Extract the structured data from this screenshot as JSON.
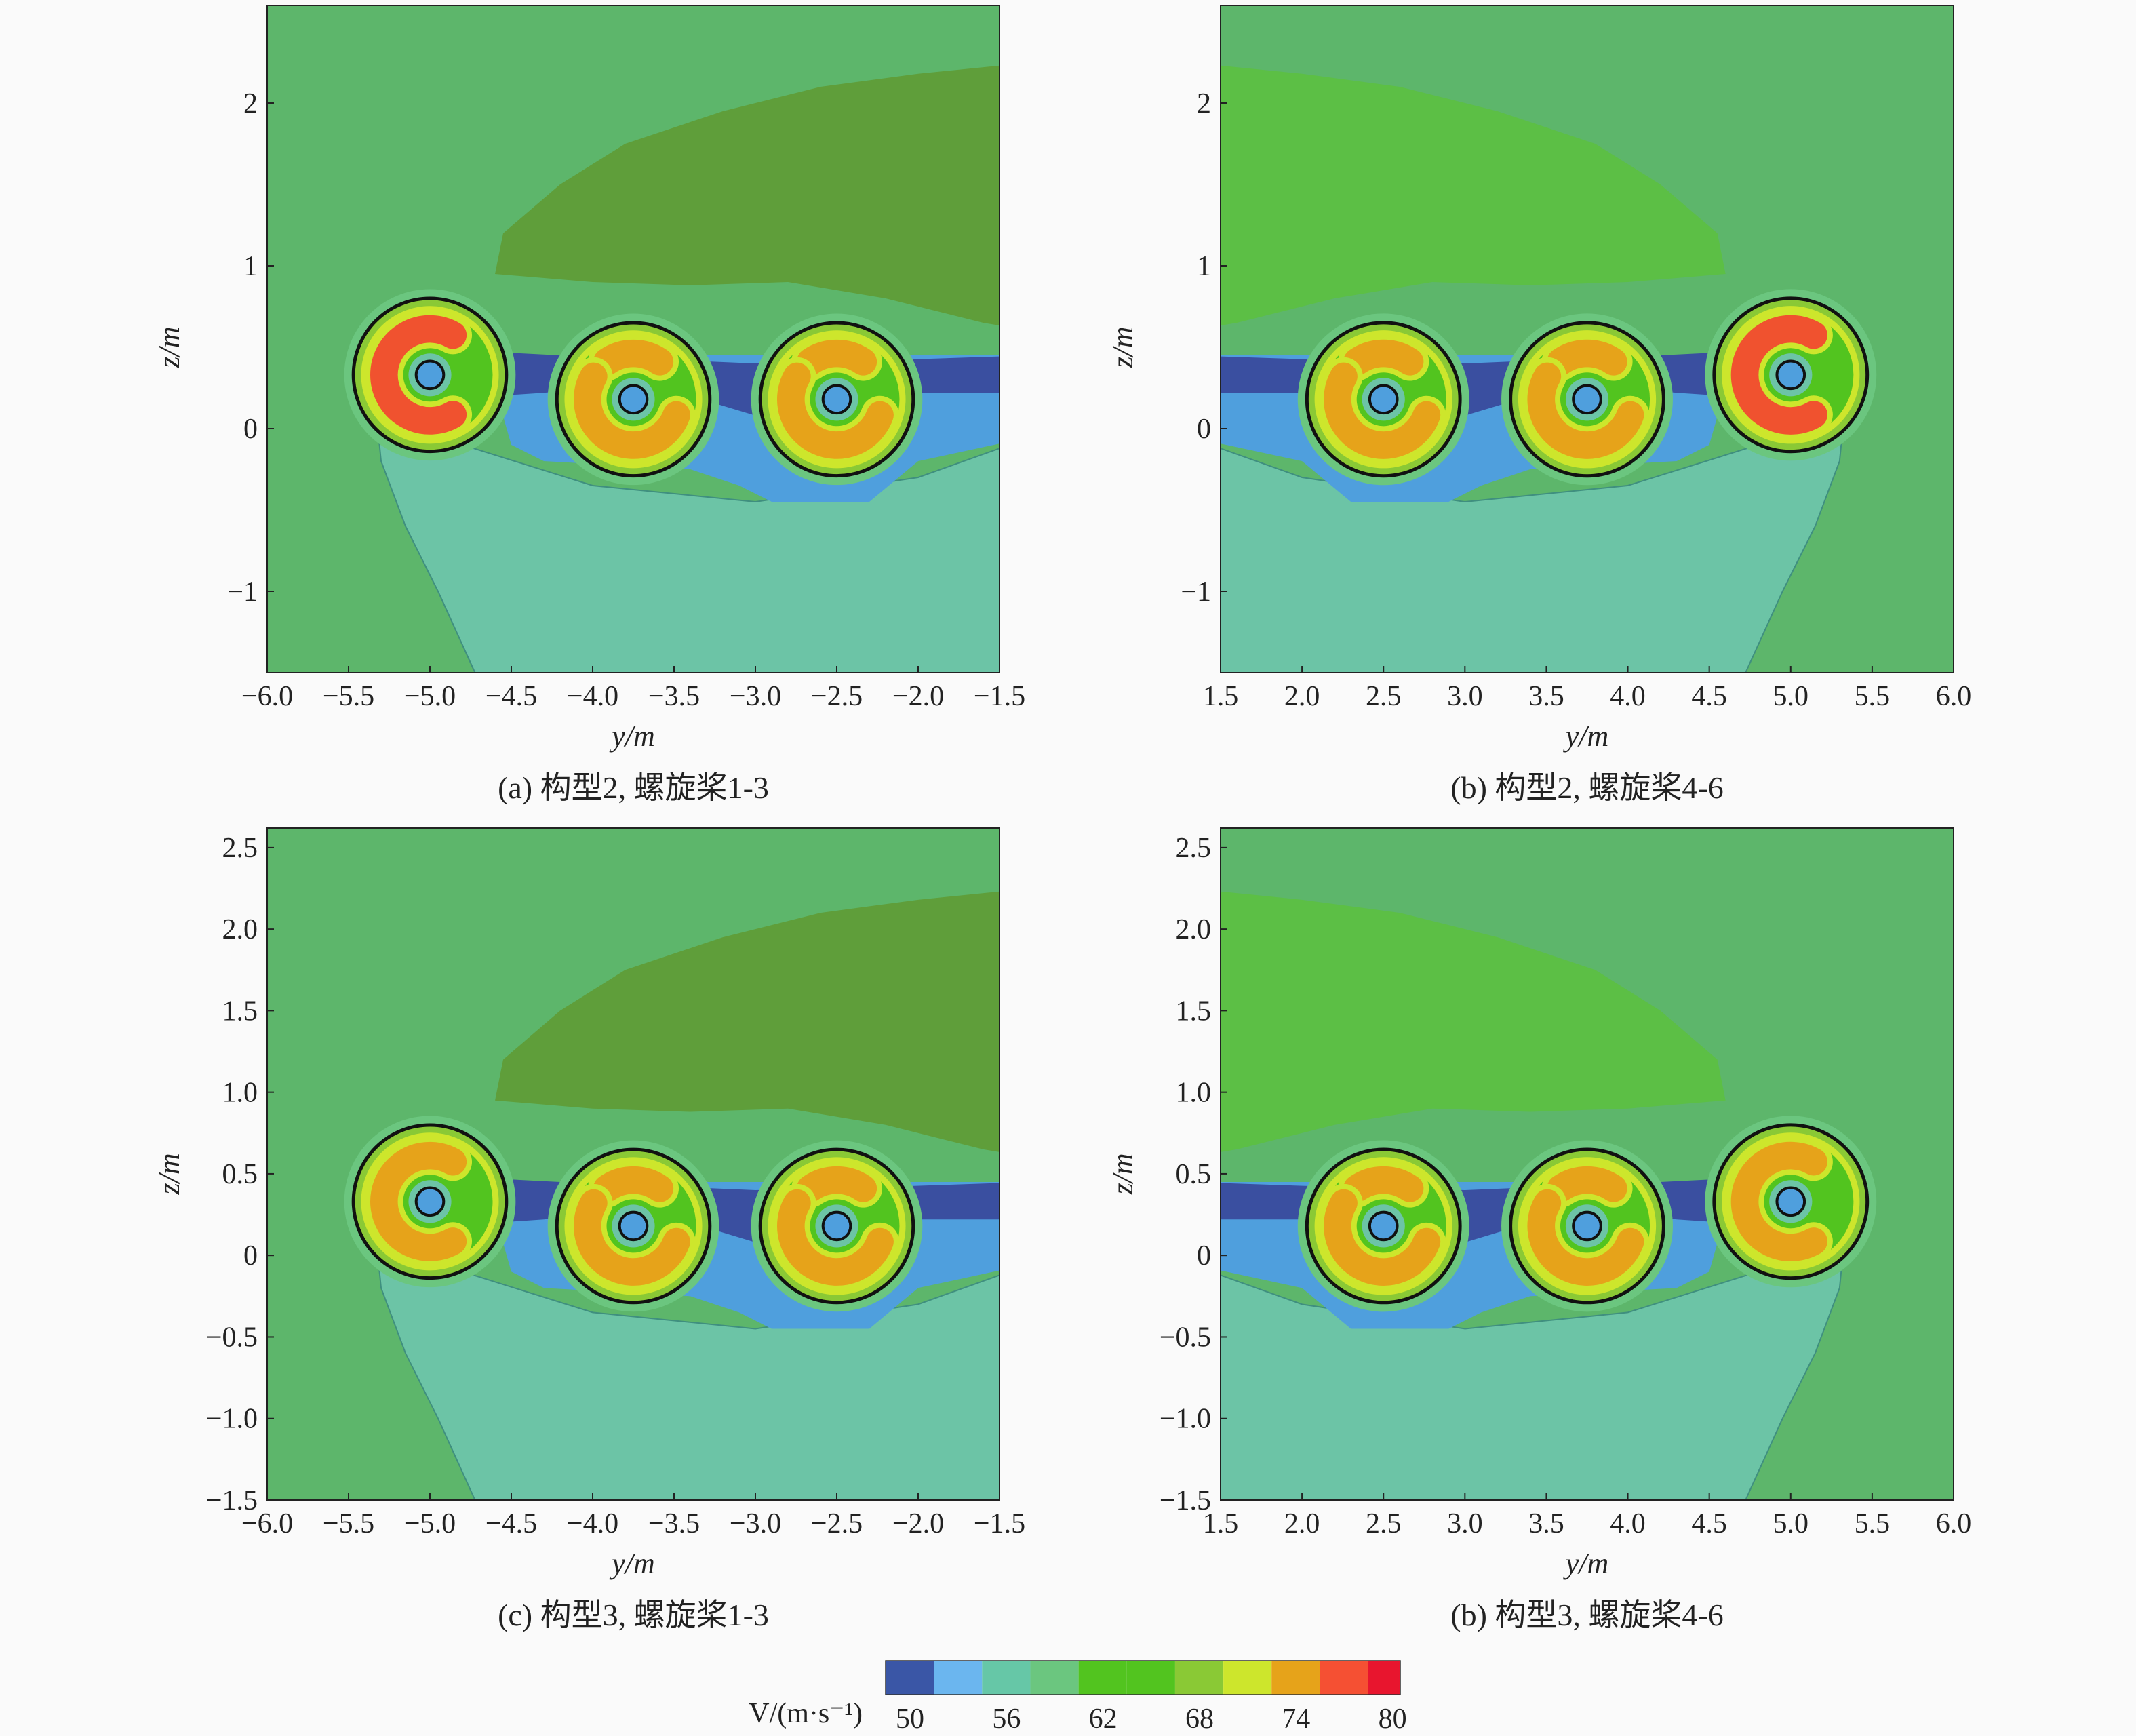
{
  "chart_data": {
    "type": "heatmap",
    "subtype": "filled-contour",
    "colorbar": {
      "label": "V/(m·s⁻¹)",
      "tick_labels": [
        "50",
        "56",
        "62",
        "68",
        "74",
        "80"
      ],
      "levels": [
        50,
        53,
        56,
        59,
        62,
        65,
        68,
        71,
        74,
        77,
        80
      ],
      "colors": [
        "#3a56a6",
        "#6bb6ef",
        "#66c7a7",
        "#6bc67f",
        "#52c41f",
        "#52c41f",
        "#8ac935",
        "#cde62c",
        "#e6a31a",
        "#f55033",
        "#e8152e"
      ]
    },
    "panels": [
      {
        "id": "a",
        "caption": "(a) 构型2, 螺旋桨1-3",
        "xlabel": "y/m",
        "ylabel": "z/m",
        "xlim": [
          -6.0,
          -1.5
        ],
        "ylim": [
          -1.5,
          2.6
        ],
        "xticks": [
          -6.0,
          -5.5,
          -5.0,
          -4.5,
          -4.0,
          -3.5,
          -3.0,
          -2.5,
          -2.0,
          -1.5
        ],
        "xtick_labels": [
          "−6.0",
          "−5.5",
          "−5.0",
          "−4.5",
          "−4.0",
          "−3.5",
          "−3.0",
          "−2.5",
          "−2.0",
          "−1.5"
        ],
        "yticks": [
          -1,
          0,
          1,
          2
        ],
        "ytick_labels": [
          "−1",
          "0",
          "1",
          "2"
        ],
        "side": "left",
        "wake_color": "#5f9e3a",
        "propellers": [
          {
            "y": -5.0,
            "z": 0.33,
            "peak": 80,
            "arcs": [
              [
                60,
                300
              ]
            ]
          },
          {
            "y": -3.75,
            "z": 0.18,
            "peak": 74,
            "arcs": [
              [
                55,
                125
              ],
              [
                150,
                340
              ]
            ]
          },
          {
            "y": -2.5,
            "z": 0.18,
            "peak": 74,
            "arcs": [
              [
                55,
                125
              ],
              [
                150,
                340
              ]
            ]
          }
        ]
      },
      {
        "id": "b",
        "caption": "(b) 构型2, 螺旋桨4-6",
        "xlabel": "y/m",
        "ylabel": "z/m",
        "xlim": [
          1.5,
          6.0
        ],
        "ylim": [
          -1.5,
          2.6
        ],
        "xticks": [
          1.5,
          2.0,
          2.5,
          3.0,
          3.5,
          4.0,
          4.5,
          5.0,
          5.5,
          6.0
        ],
        "xtick_labels": [
          "1.5",
          "2.0",
          "2.5",
          "3.0",
          "3.5",
          "4.0",
          "4.5",
          "5.0",
          "5.5",
          "6.0"
        ],
        "yticks": [
          -1,
          0,
          1,
          2
        ],
        "ytick_labels": [
          "−1",
          "0",
          "1",
          "2"
        ],
        "side": "right",
        "wake_color": "#5cbf45",
        "propellers": [
          {
            "y": 2.5,
            "z": 0.18,
            "peak": 74,
            "arcs": [
              [
                55,
                125
              ],
              [
                200,
                390
              ]
            ]
          },
          {
            "y": 3.75,
            "z": 0.18,
            "peak": 74,
            "arcs": [
              [
                55,
                125
              ],
              [
                200,
                390
              ]
            ]
          },
          {
            "y": 5.0,
            "z": 0.33,
            "peak": 80,
            "arcs": [
              [
                -120,
                120
              ]
            ]
          }
        ]
      },
      {
        "id": "c",
        "caption": "(c) 构型3, 螺旋桨1-3",
        "xlabel": "y/m",
        "ylabel": "z/m",
        "xlim": [
          -6.0,
          -1.5
        ],
        "ylim": [
          -1.5,
          2.62
        ],
        "xticks": [
          -6.0,
          -5.5,
          -5.0,
          -4.5,
          -4.0,
          -3.5,
          -3.0,
          -2.5,
          -2.0,
          -1.5
        ],
        "xtick_labels": [
          "−6.0",
          "−5.5",
          "−5.0",
          "−4.5",
          "−4.0",
          "−3.5",
          "−3.0",
          "−2.5",
          "−2.0",
          "−1.5"
        ],
        "yticks": [
          -1.5,
          -1.0,
          -0.5,
          0,
          0.5,
          1.0,
          1.5,
          2.0,
          2.5
        ],
        "ytick_labels": [
          "−1.5",
          "−1.0",
          "−0.5",
          "0",
          "0.5",
          "1.0",
          "1.5",
          "2.0",
          "2.5"
        ],
        "side": "left",
        "wake_color": "#5f9e3a",
        "propellers": [
          {
            "y": -5.0,
            "z": 0.33,
            "peak": 77,
            "arcs": [
              [
                60,
                300
              ]
            ]
          },
          {
            "y": -3.75,
            "z": 0.18,
            "peak": 74,
            "arcs": [
              [
                55,
                125
              ],
              [
                150,
                340
              ]
            ]
          },
          {
            "y": -2.5,
            "z": 0.18,
            "peak": 74,
            "arcs": [
              [
                55,
                125
              ],
              [
                150,
                340
              ]
            ]
          }
        ]
      },
      {
        "id": "d",
        "caption": "(b) 构型3, 螺旋桨4-6",
        "xlabel": "y/m",
        "ylabel": "z/m",
        "xlim": [
          1.5,
          6.0
        ],
        "ylim": [
          -1.5,
          2.62
        ],
        "xticks": [
          1.5,
          2.0,
          2.5,
          3.0,
          3.5,
          4.0,
          4.5,
          5.0,
          5.5,
          6.0
        ],
        "xtick_labels": [
          "1.5",
          "2.0",
          "2.5",
          "3.0",
          "3.5",
          "4.0",
          "4.5",
          "5.0",
          "5.5",
          "6.0"
        ],
        "yticks": [
          -1.5,
          -1.0,
          -0.5,
          0,
          0.5,
          1.0,
          1.5,
          2.0,
          2.5
        ],
        "ytick_labels": [
          "−1.5",
          "−1.0",
          "−0.5",
          "0",
          "0.5",
          "1.0",
          "1.5",
          "2.0",
          "2.5"
        ],
        "side": "right",
        "wake_color": "#5cbf45",
        "propellers": [
          {
            "y": 2.5,
            "z": 0.18,
            "peak": 74,
            "arcs": [
              [
                55,
                125
              ],
              [
                200,
                390
              ]
            ]
          },
          {
            "y": 3.75,
            "z": 0.18,
            "peak": 74,
            "arcs": [
              [
                55,
                125
              ],
              [
                200,
                390
              ]
            ]
          },
          {
            "y": 5.0,
            "z": 0.33,
            "peak": 77,
            "arcs": [
              [
                -120,
                120
              ]
            ]
          }
        ]
      }
    ]
  }
}
